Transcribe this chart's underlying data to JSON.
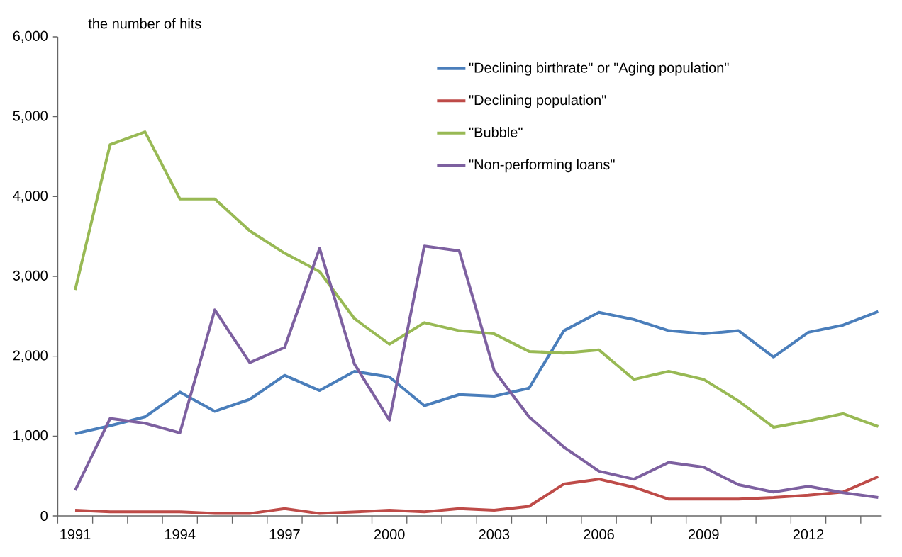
{
  "chart_data": {
    "type": "line",
    "ylabel": "the number of hits",
    "categories": [
      "1991",
      null,
      null,
      "1994",
      null,
      null,
      "1997",
      null,
      null,
      "2000",
      null,
      null,
      "2003",
      null,
      null,
      "2006",
      null,
      null,
      "2009",
      null,
      null,
      "2012",
      null,
      null
    ],
    "series": [
      {
        "name": "\"Declining birthrate\" or \"Aging population\"",
        "color": "#4a7ebb",
        "values": [
          1030,
          1130,
          1240,
          1550,
          1310,
          1460,
          1760,
          1570,
          1810,
          1740,
          1380,
          1520,
          1500,
          1600,
          2320,
          2550,
          2460,
          2320,
          2280,
          2320,
          1990,
          2300,
          2390,
          2560
        ]
      },
      {
        "name": "\"Declining population\"",
        "color": "#be4b48",
        "values": [
          70,
          50,
          50,
          50,
          30,
          30,
          90,
          30,
          50,
          70,
          50,
          90,
          70,
          120,
          400,
          460,
          360,
          210,
          210,
          210,
          230,
          260,
          300,
          490
        ]
      },
      {
        "name": "\"Bubble\"",
        "color": "#98b954",
        "values": [
          2830,
          4650,
          4810,
          3970,
          3970,
          3570,
          3290,
          3060,
          2470,
          2150,
          2420,
          2320,
          2280,
          2060,
          2040,
          2080,
          1710,
          1810,
          1710,
          1440,
          1110,
          1190,
          1280,
          1120
        ]
      },
      {
        "name": "\"Non-performing loans\"",
        "color": "#7d60a0",
        "values": [
          320,
          1220,
          1160,
          1040,
          2580,
          1920,
          2110,
          3350,
          1900,
          1200,
          3380,
          3320,
          1820,
          1240,
          860,
          560,
          460,
          670,
          610,
          390,
          300,
          370,
          290,
          230
        ]
      }
    ],
    "ylim": [
      0,
      6000
    ],
    "yticks": [
      0,
      {
        "value": 1000,
        "label": "1,000"
      },
      {
        "value": 2000,
        "label": "2,000"
      },
      {
        "value": 3000,
        "label": "3,000"
      },
      {
        "value": 4000,
        "label": "4,000"
      },
      {
        "value": 5000,
        "label": "5,000"
      },
      {
        "value": 6000,
        "label": "6,000"
      }
    ],
    "grid": false,
    "legend": "top right",
    "marker": "none",
    "line_style": "solid"
  }
}
